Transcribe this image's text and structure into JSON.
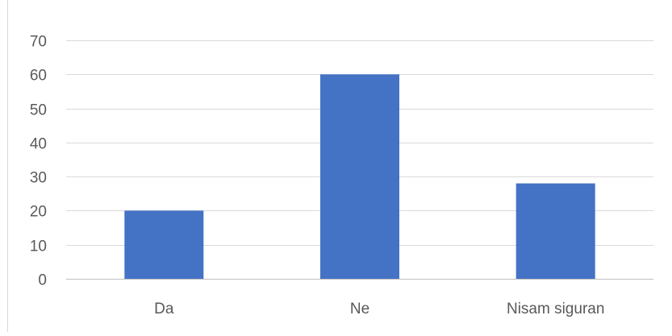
{
  "chart_data": {
    "type": "bar",
    "categories": [
      "Da",
      "Ne",
      "Nisam siguran"
    ],
    "values": [
      20,
      60,
      28
    ],
    "title": "",
    "xlabel": "",
    "ylabel": "",
    "ylim": [
      0,
      70
    ],
    "yticks": [
      0,
      10,
      20,
      30,
      40,
      50,
      60,
      70
    ],
    "grid": true,
    "legend": "none",
    "colors": {
      "bar": "#4472c4",
      "grid": "#d9d9d9",
      "axis": "#bfbfbf",
      "text": "#595959"
    }
  }
}
